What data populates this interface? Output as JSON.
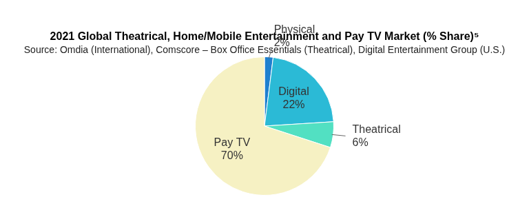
{
  "chart_data": {
    "type": "pie",
    "title": "2021 Global Theatrical, Home/Mobile Entertainment and Pay TV Market (% Share)⁵",
    "subtitle": "Source: Omdia (International), Comscore – Box Office Essentials (Theatrical), Digital Entertainment Group (U.S.)",
    "categories": [
      "Physical",
      "Digital",
      "Theatrical",
      "Pay TV"
    ],
    "values": [
      2,
      22,
      6,
      70
    ],
    "value_labels": [
      "2%",
      "22%",
      "6%",
      "70%"
    ],
    "colors": [
      "#1e80cf",
      "#2bbad6",
      "#52e0c2",
      "#f6f1c3"
    ],
    "data_labels": true
  }
}
